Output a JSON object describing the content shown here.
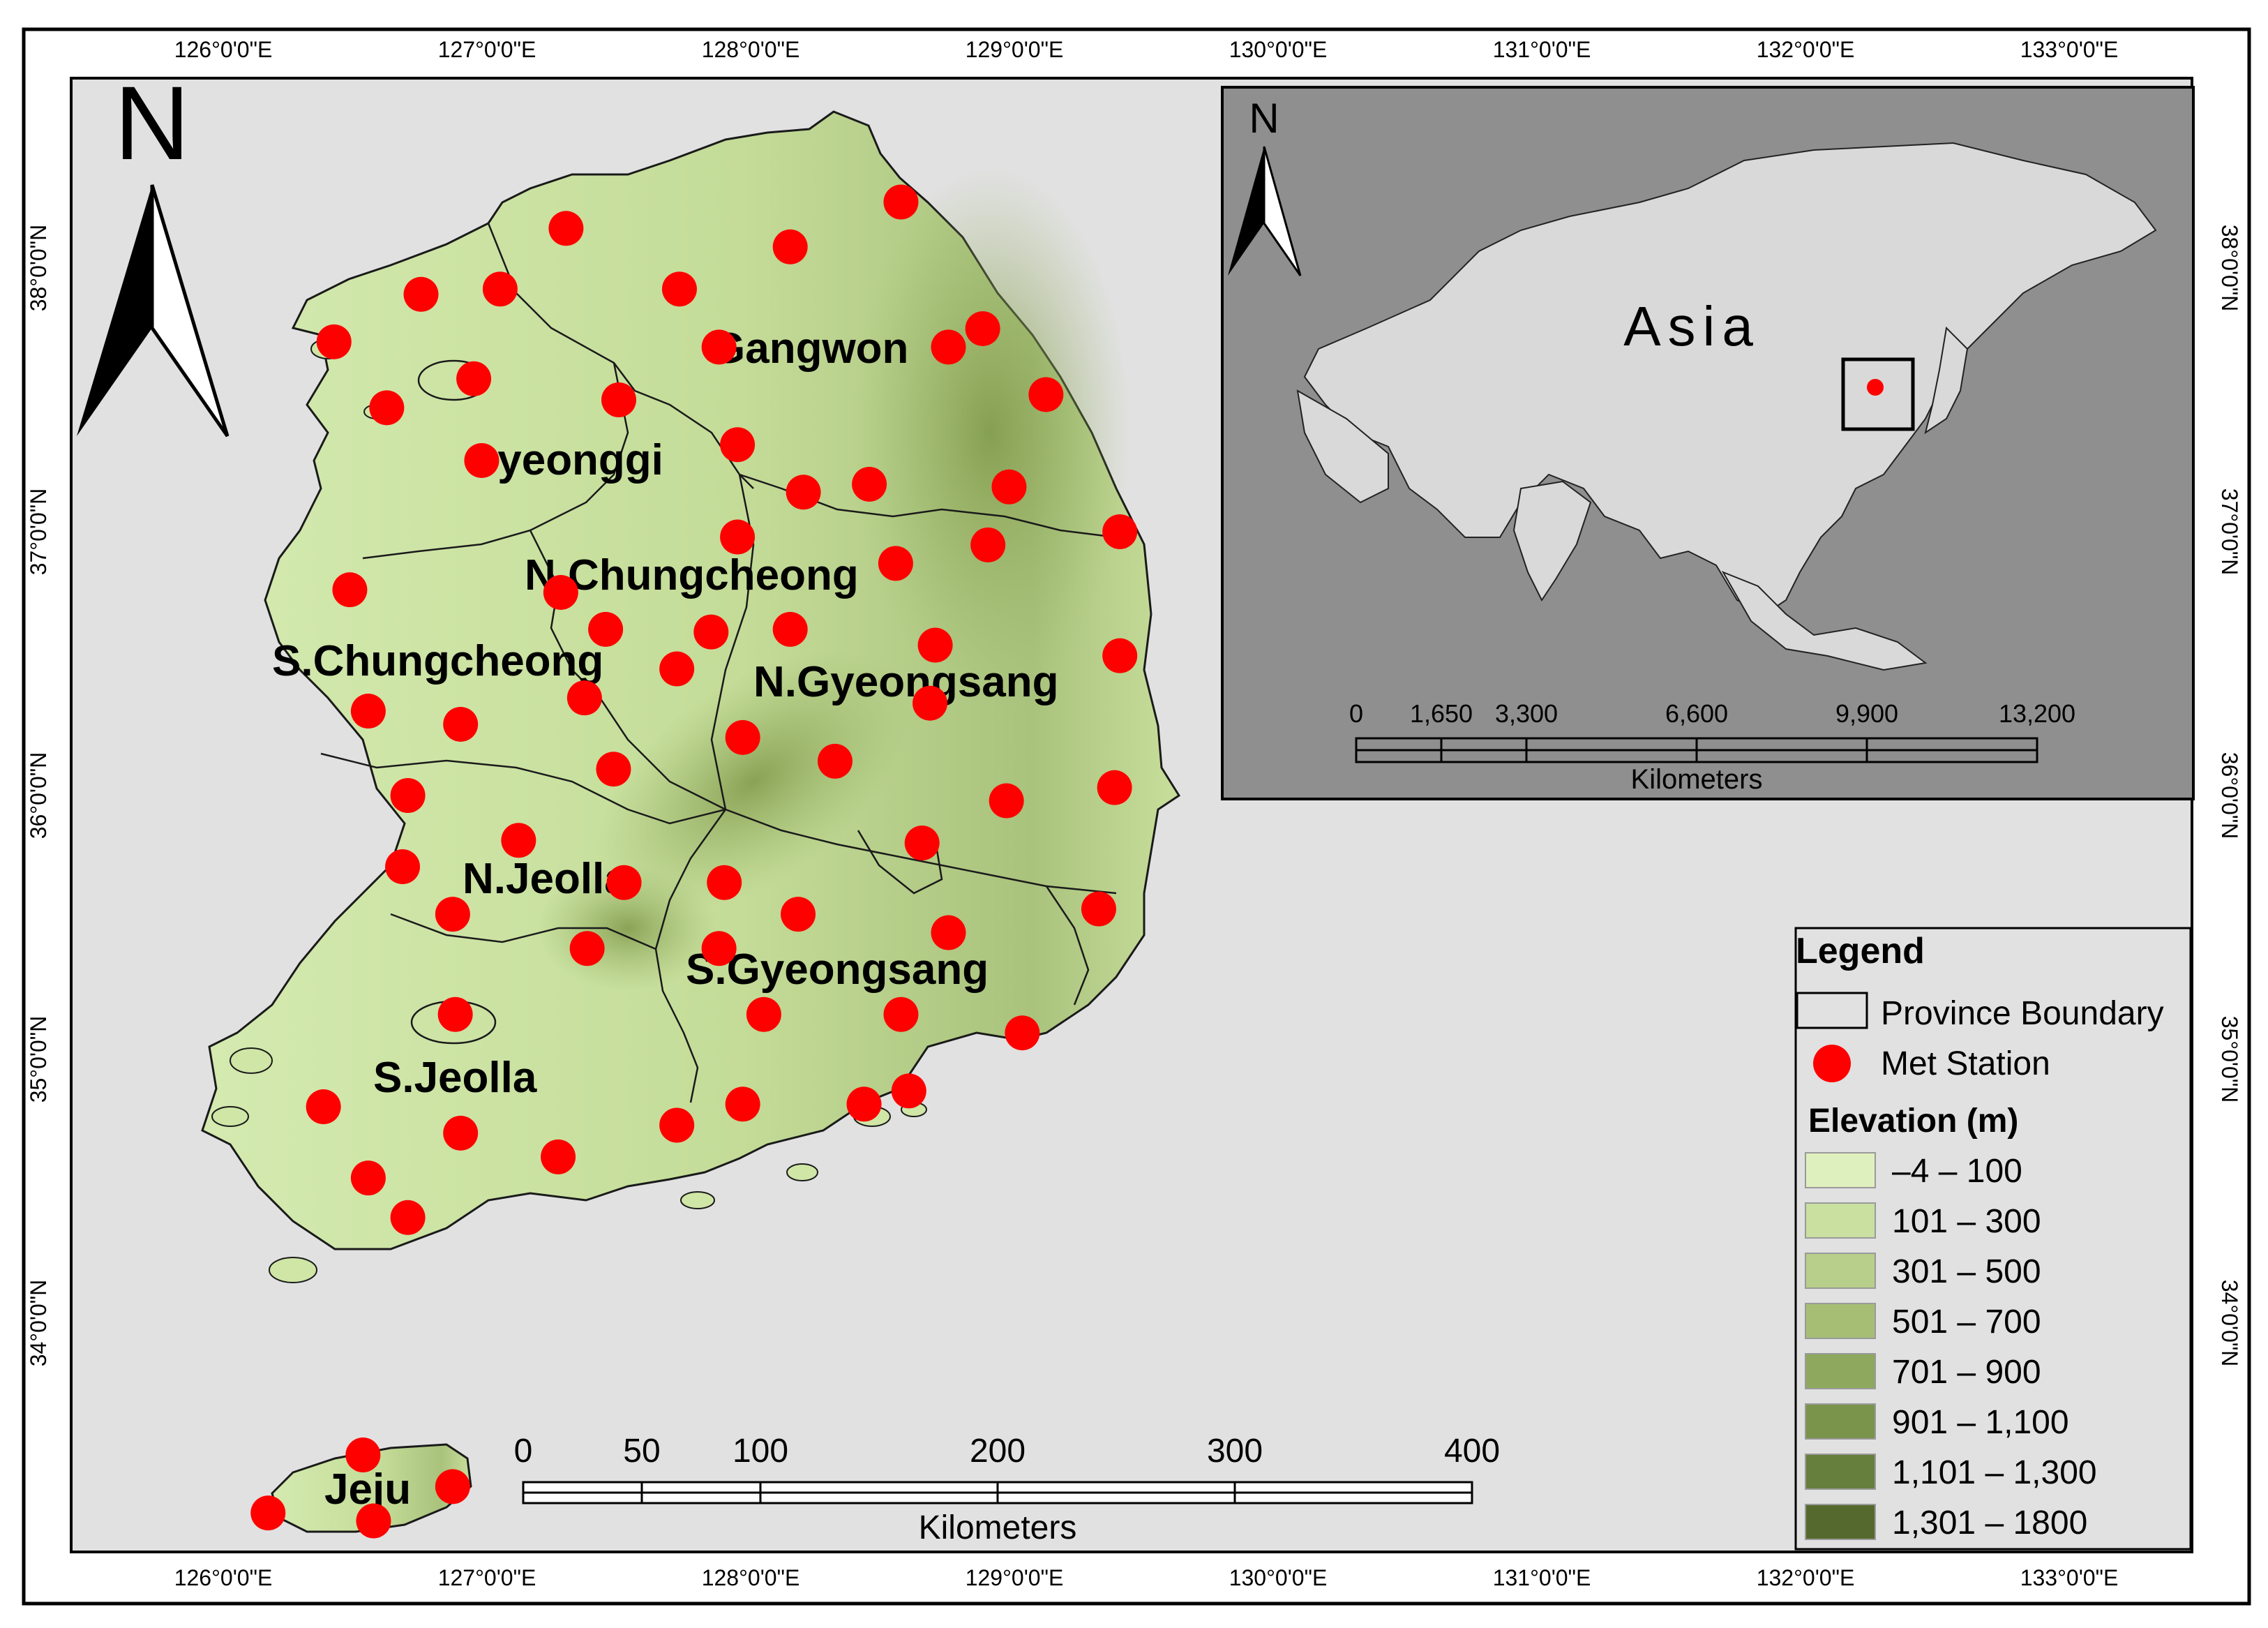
{
  "colors": {
    "sea": "#e1e1e1",
    "land_low": "#dcefb8",
    "land_mid": "#b9d28a",
    "land_high": "#7d9548",
    "station": "#ff0000",
    "inset_bg": "#8f8f8f",
    "inset_land": "#d9d9d9",
    "frame": "#000000"
  },
  "graticule": {
    "lon_labels": [
      "126°0'0\"E",
      "127°0'0\"E",
      "128°0'0\"E",
      "129°0'0\"E",
      "130°0'0\"E",
      "131°0'0\"E",
      "132°0'0\"E",
      "133°0'0\"E"
    ],
    "lat_labels": [
      "38°0'0\"N",
      "37°0'0\"N",
      "36°0'0\"N",
      "35°0'0\"N",
      "34°0'0\"N"
    ]
  },
  "north_arrow": {
    "label": "N"
  },
  "provinces": [
    {
      "name": "Gangwon"
    },
    {
      "name": "Gyeonggi"
    },
    {
      "name": "N.Chungcheong"
    },
    {
      "name": "S.Chungcheong"
    },
    {
      "name": "N.Gyeongsang"
    },
    {
      "name": "N.Jeolla"
    },
    {
      "name": "S.Gyeongsang"
    },
    {
      "name": "S.Jeolla"
    },
    {
      "name": "Jeju"
    }
  ],
  "stations": [
    {
      "lon": 126.42,
      "lat": 37.72
    },
    {
      "lon": 126.62,
      "lat": 37.47
    },
    {
      "lon": 126.75,
      "lat": 37.9
    },
    {
      "lon": 127.05,
      "lat": 37.92
    },
    {
      "lon": 127.3,
      "lat": 38.15
    },
    {
      "lon": 126.95,
      "lat": 37.58
    },
    {
      "lon": 127.5,
      "lat": 37.5
    },
    {
      "lon": 126.98,
      "lat": 37.27
    },
    {
      "lon": 127.73,
      "lat": 37.92
    },
    {
      "lon": 128.15,
      "lat": 38.08
    },
    {
      "lon": 128.57,
      "lat": 38.25
    },
    {
      "lon": 128.88,
      "lat": 37.77
    },
    {
      "lon": 127.88,
      "lat": 37.7
    },
    {
      "lon": 128.75,
      "lat": 37.7
    },
    {
      "lon": 129.12,
      "lat": 37.52
    },
    {
      "lon": 127.95,
      "lat": 37.33
    },
    {
      "lon": 128.2,
      "lat": 37.15
    },
    {
      "lon": 128.45,
      "lat": 37.18
    },
    {
      "lon": 128.98,
      "lat": 37.17
    },
    {
      "lon": 129.4,
      "lat": 37.0
    },
    {
      "lon": 127.95,
      "lat": 36.98
    },
    {
      "lon": 128.9,
      "lat": 36.95
    },
    {
      "lon": 128.55,
      "lat": 36.88
    },
    {
      "lon": 127.28,
      "lat": 36.77
    },
    {
      "lon": 126.48,
      "lat": 36.78
    },
    {
      "lon": 127.45,
      "lat": 36.63
    },
    {
      "lon": 127.85,
      "lat": 36.62
    },
    {
      "lon": 128.15,
      "lat": 36.63
    },
    {
      "lon": 128.7,
      "lat": 36.57
    },
    {
      "lon": 129.4,
      "lat": 36.53
    },
    {
      "lon": 127.72,
      "lat": 36.48
    },
    {
      "lon": 127.37,
      "lat": 36.37
    },
    {
      "lon": 128.68,
      "lat": 36.35
    },
    {
      "lon": 126.55,
      "lat": 36.32
    },
    {
      "lon": 126.9,
      "lat": 36.27
    },
    {
      "lon": 127.97,
      "lat": 36.22
    },
    {
      "lon": 128.32,
      "lat": 36.13
    },
    {
      "lon": 127.48,
      "lat": 36.1
    },
    {
      "lon": 129.38,
      "lat": 36.03
    },
    {
      "lon": 126.7,
      "lat": 36.0
    },
    {
      "lon": 128.97,
      "lat": 35.98
    },
    {
      "lon": 127.12,
      "lat": 35.83
    },
    {
      "lon": 128.65,
      "lat": 35.82
    },
    {
      "lon": 126.68,
      "lat": 35.73
    },
    {
      "lon": 127.52,
      "lat": 35.67
    },
    {
      "lon": 127.9,
      "lat": 35.67
    },
    {
      "lon": 126.87,
      "lat": 35.55
    },
    {
      "lon": 128.18,
      "lat": 35.55
    },
    {
      "lon": 128.75,
      "lat": 35.48
    },
    {
      "lon": 129.32,
      "lat": 35.57
    },
    {
      "lon": 127.38,
      "lat": 35.42
    },
    {
      "lon": 127.88,
      "lat": 35.42
    },
    {
      "lon": 126.88,
      "lat": 35.17
    },
    {
      "lon": 128.05,
      "lat": 35.17
    },
    {
      "lon": 128.57,
      "lat": 35.17
    },
    {
      "lon": 129.03,
      "lat": 35.1
    },
    {
      "lon": 126.38,
      "lat": 34.82
    },
    {
      "lon": 127.97,
      "lat": 34.83
    },
    {
      "lon": 128.43,
      "lat": 34.83
    },
    {
      "lon": 128.6,
      "lat": 34.88
    },
    {
      "lon": 127.72,
      "lat": 34.75
    },
    {
      "lon": 126.9,
      "lat": 34.72
    },
    {
      "lon": 127.27,
      "lat": 34.63
    },
    {
      "lon": 126.55,
      "lat": 34.55
    },
    {
      "lon": 126.7,
      "lat": 34.4
    },
    {
      "lon": 126.53,
      "lat": 33.5
    },
    {
      "lon": 126.87,
      "lat": 33.38
    },
    {
      "lon": 126.17,
      "lat": 33.28
    },
    {
      "lon": 126.57,
      "lat": 33.25
    }
  ],
  "scale_bar": {
    "ticks": [
      "0",
      "50",
      "100",
      "200",
      "300",
      "400"
    ],
    "unit": "Kilometers"
  },
  "inset": {
    "label": "Asia",
    "north_label": "N",
    "scale_ticks": [
      "0",
      "1,650",
      "3,300",
      "6,600",
      "9,900",
      "13,200"
    ],
    "scale_unit": "Kilometers"
  },
  "legend": {
    "title": "Legend",
    "boundary_label": "Province Boundary",
    "station_label": "Met Station",
    "elevation_title": "Elevation (m)",
    "classes": [
      {
        "label": "–4 – 100",
        "color": "#dff0bf"
      },
      {
        "label": "101 – 300",
        "color": "#c9e0a0"
      },
      {
        "label": "301 – 500",
        "color": "#b7cf8a"
      },
      {
        "label": "501 – 700",
        "color": "#a5be74"
      },
      {
        "label": "701 – 900",
        "color": "#8ea95e"
      },
      {
        "label": "901 – 1,100",
        "color": "#7a944c"
      },
      {
        "label": "1,101 – 1,300",
        "color": "#667f3c"
      },
      {
        "label": "1,301 – 1800",
        "color": "#55692e"
      }
    ]
  }
}
